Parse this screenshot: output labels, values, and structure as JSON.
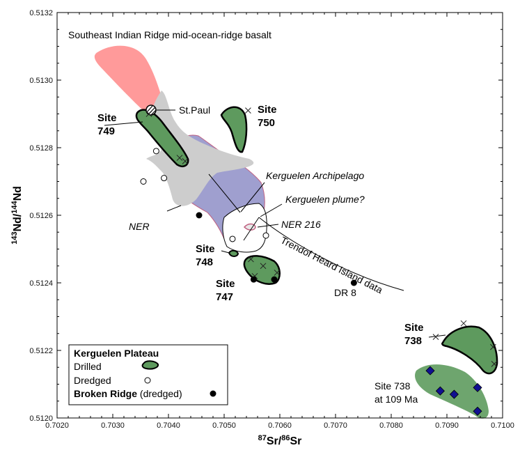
{
  "chart_data": {
    "type": "scatter",
    "title": "Southeast Indian Ridge mid-ocean-ridge basalt",
    "xlabel": {
      "sup": "87",
      "main": "Sr/",
      "sup2": "86",
      "main2": "Sr"
    },
    "ylabel": {
      "sup": "143",
      "main": "Nd/",
      "sup2": "144",
      "main2": "Nd"
    },
    "xlim": [
      0.702,
      0.71
    ],
    "ylim": [
      0.512,
      0.5132
    ],
    "x_ticks": [
      "0.7020",
      "0.7030",
      "0.7040",
      "0.7050",
      "0.7060",
      "0.7070",
      "0.7080",
      "0.7090",
      "0.7100"
    ],
    "y_ticks": [
      "0.5120",
      "0.5122",
      "0.5124",
      "0.5126",
      "0.5128",
      "0.5130",
      "0.5132"
    ],
    "colors": {
      "st_paul_field": "#ff9a9a",
      "ridge_field": "#9f9fcf",
      "archipelago_field": "#cdcdcd",
      "drilled_fill": "#5e9a5e",
      "site738_109": "#6ea56e",
      "diamond": "#101090"
    },
    "annotations": {
      "site749": [
        "Site",
        "749"
      ],
      "site750": [
        "Site",
        "750"
      ],
      "site748": [
        "Site",
        "748"
      ],
      "site747": [
        "Site",
        "747"
      ],
      "site738": [
        "Site",
        "738"
      ],
      "site738_109": [
        "Site 738",
        "at 109 Ma"
      ],
      "st_paul": "St.Paul",
      "kerguelen_archipelago": "Kerguelen Archipelago",
      "kerguelen_plume": "Kerguelen plume?",
      "ner": "NER",
      "ner216": "NER 216",
      "heard_trend": "Trendof Heard Island data",
      "dr8": "DR 8"
    },
    "series": [
      {
        "name": "Dredged",
        "marker": "open-circle",
        "points": [
          [
            0.70378,
            0.51279
          ],
          [
            0.70355,
            0.5127
          ],
          [
            0.70392,
            0.51271
          ],
          [
            0.70515,
            0.51253
          ],
          [
            0.70575,
            0.51254
          ]
        ]
      },
      {
        "name": "Broken Ridge (dredged)",
        "marker": "filled-circle",
        "points": [
          [
            0.70455,
            0.5126
          ],
          [
            0.70553,
            0.51241
          ],
          [
            0.7059,
            0.51241
          ],
          [
            0.70733,
            0.5124
          ]
        ]
      },
      {
        "name": "Site 738 at 109 Ma",
        "marker": "diamond",
        "points": [
          [
            0.7087,
            0.51214
          ],
          [
            0.70888,
            0.51208
          ],
          [
            0.70913,
            0.51207
          ],
          [
            0.70955,
            0.51209
          ],
          [
            0.70955,
            0.51202
          ]
        ]
      }
    ],
    "drilled_crosses": [
      [
        0.70365,
        0.5129
      ],
      [
        0.7043,
        0.51276
      ],
      [
        0.7042,
        0.51277
      ],
      [
        0.70543,
        0.51291
      ],
      [
        0.70548,
        0.51247
      ],
      [
        0.7057,
        0.51245
      ],
      [
        0.70595,
        0.51243
      ],
      [
        0.70555,
        0.51242
      ],
      [
        0.7093,
        0.51228
      ],
      [
        0.7088,
        0.51224
      ],
      [
        0.70983,
        0.51221
      ],
      [
        0.70985,
        0.51216
      ]
    ],
    "legend": {
      "title": "Kerguelen Plateau",
      "drilled": "Drilled",
      "dredged": "Dredged",
      "broken_main": "Broken Ridge",
      "broken_sub": "(dredged)",
      "position": "bottom-left"
    }
  }
}
